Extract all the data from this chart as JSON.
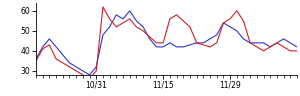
{
  "blue_y": [
    36,
    42,
    46,
    42,
    38,
    34,
    32,
    30,
    28,
    32,
    48,
    52,
    58,
    56,
    60,
    55,
    52,
    46,
    42,
    42,
    44,
    42,
    42,
    43,
    44,
    44,
    46,
    48,
    54,
    52,
    50,
    46,
    44,
    44,
    44,
    42,
    44,
    46,
    44,
    42
  ],
  "red_y": [
    35,
    41,
    43,
    36,
    34,
    32,
    30,
    28,
    26,
    30,
    62,
    56,
    52,
    54,
    56,
    52,
    50,
    47,
    44,
    44,
    56,
    58,
    55,
    52,
    44,
    43,
    42,
    44,
    54,
    56,
    60,
    55,
    44,
    42,
    40,
    42,
    44,
    42,
    40,
    40
  ],
  "xlim": [
    0,
    39
  ],
  "ylim": [
    28,
    64
  ],
  "yticks": [
    30,
    40,
    50,
    60
  ],
  "xtick_positions": [
    9,
    19,
    29
  ],
  "xtick_labels": [
    "10/31",
    "11/15",
    "11/29"
  ],
  "minor_xtick_positions": [
    0,
    1,
    2,
    3,
    4,
    5,
    6,
    7,
    8,
    9,
    10,
    11,
    12,
    13,
    14,
    15,
    16,
    17,
    18,
    19,
    20,
    21,
    22,
    23,
    24,
    25,
    26,
    27,
    28,
    29,
    30,
    31,
    32,
    33,
    34,
    35,
    36,
    37,
    38,
    39
  ],
  "line_color_blue": "#3333cc",
  "line_color_red": "#cc2222",
  "bg_color": "#ffffff",
  "linewidth": 0.8,
  "tick_fontsize": 5.5,
  "spine_linewidth": 0.6
}
